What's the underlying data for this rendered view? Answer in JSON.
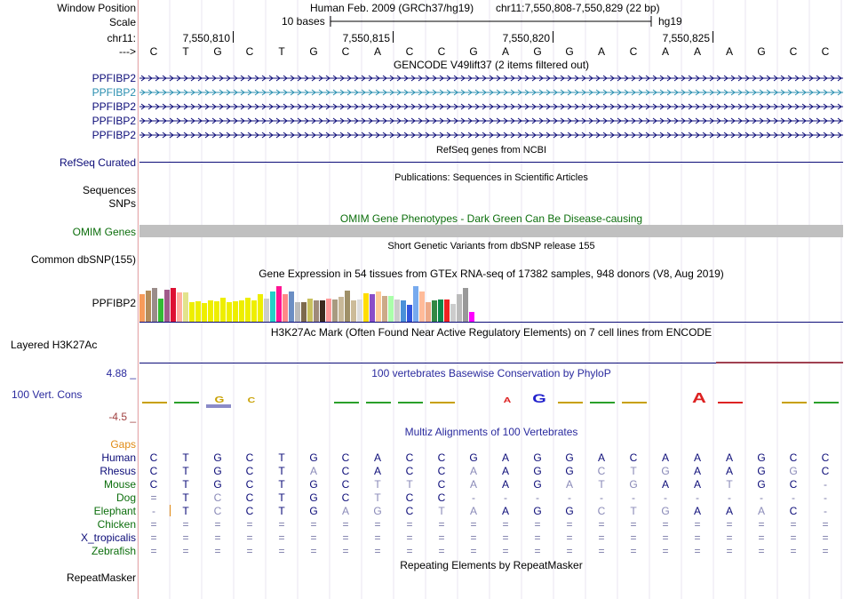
{
  "header": {
    "window_position_label": "Window Position",
    "scale_label": "Scale",
    "chrom_label": "chr11:",
    "strand_label": "--->",
    "assembly_title": "Human Feb. 2009 (GRCh37/hg19)",
    "position_text": "chr11:7,550,808-7,550,829 (22 bp)",
    "scale_text": "10 bases",
    "scale_db": "hg19",
    "ruler_ticks": [
      "7,550,810",
      "7,550,815",
      "7,550,820",
      "7,550,825"
    ]
  },
  "bases": [
    "C",
    "T",
    "G",
    "C",
    "T",
    "G",
    "C",
    "A",
    "C",
    "C",
    "G",
    "A",
    "G",
    "G",
    "A",
    "C",
    "A",
    "A",
    "A",
    "G",
    "C",
    "C"
  ],
  "gencode": {
    "title": "GENCODE V49lift37 (2 items filtered out)",
    "rows": [
      {
        "name": "PPFIBP2",
        "color": "#0c0c78"
      },
      {
        "name": "PPFIBP2",
        "color": "#2a8fb0"
      },
      {
        "name": "PPFIBP2",
        "color": "#0c0c78"
      },
      {
        "name": "PPFIBP2",
        "color": "#0c0c78"
      },
      {
        "name": "PPFIBP2",
        "color": "#0c0c78"
      }
    ]
  },
  "refseq": {
    "title": "RefSeq genes from NCBI",
    "label": "RefSeq Curated",
    "color": "#0c0c78"
  },
  "publications": {
    "title": "Publications: Sequences in Scientific Articles",
    "label1": "Sequences",
    "label2": "SNPs"
  },
  "omim": {
    "title": "OMIM Gene Phenotypes - Dark Green Can Be Disease-causing",
    "label": "OMIM Genes",
    "color": "#0c6e0c"
  },
  "dbsnp": {
    "title": "Short Genetic Variants from dbSNP release 155",
    "label": "Common dbSNP(155)"
  },
  "gtex": {
    "title": "Gene Expression in 54 tissues from GTEx RNA-seq of 17382 samples, 948 donors (V8, Aug 2019)",
    "label": "PPFIBP2",
    "bar_levels": [
      0.71,
      0.8,
      0.86,
      0.6,
      0.82,
      0.86,
      0.75,
      0.74,
      0.51,
      0.53,
      0.47,
      0.55,
      0.53,
      0.61,
      0.49,
      0.53,
      0.55,
      0.62,
      0.55,
      0.7,
      0.58,
      0.77,
      0.91,
      0.71,
      0.77,
      0.51,
      0.51,
      0.58,
      0.55,
      0.54,
      0.6,
      0.56,
      0.64,
      0.79,
      0.55,
      0.57,
      0.72,
      0.71,
      0.77,
      0.67,
      0.67,
      0.57,
      0.55,
      0.44,
      0.9,
      0.77,
      0.5,
      0.54,
      0.56,
      0.57,
      0.46,
      0.71,
      0.86,
      0.24
    ],
    "bar_colors": [
      "#f79b5a",
      "#b38c5a",
      "#9a8c8a",
      "#33bb33",
      "#a05a8a",
      "#dd1133",
      "#ffb0a0",
      "#e2e38c",
      "#eeee00",
      "#eeee00",
      "#eeee00",
      "#eeee00",
      "#eeee00",
      "#eeee00",
      "#eeee00",
      "#eeee00",
      "#eeee00",
      "#eeee00",
      "#eeee00",
      "#eeee00",
      "#cccccc",
      "#22d0c8",
      "#ff1493",
      "#ff8888",
      "#6b8ec4",
      "#bbbbbb",
      "#7d6a4d",
      "#c9c05e",
      "#9e8a7a",
      "#3d2b1f",
      "#ff9999",
      "#a89a80",
      "#c8b898",
      "#9f9068",
      "#ccbb99",
      "#dddddd",
      "#ffdd00",
      "#8a4ec8",
      "#ffcc99",
      "#ccaa88",
      "#aaffaa",
      "#cccccc",
      "#4a90d9",
      "#3355dd",
      "#77aaee",
      "#ffbb99",
      "#eeaa88",
      "#338844",
      "#0a8a4a",
      "#ee2222",
      "#cccccc",
      "#bbbbbb",
      "#999999",
      "#ff00ff"
    ]
  },
  "h3k27ac": {
    "title": "H3K27Ac Mark (Often Found Near Active Regulatory Elements) on 7 cell lines from ENCODE",
    "label": "Layered H3K27Ac"
  },
  "cons": {
    "title": "100 vertebrates Basewise Conservation by PhyloP",
    "label": "100 Vert. Cons",
    "ymax": "4.88 _",
    "ymin": "-4.5 _",
    "color": "#2a2a9e"
  },
  "multiz": {
    "title": "Multiz Alignments of 100 Vertebrates",
    "gaps_label": "Gaps",
    "species": [
      {
        "name": "Human",
        "color": "#0c0c78",
        "seq": [
          "C",
          "T",
          "G",
          "C",
          "T",
          "G",
          "C",
          "A",
          "C",
          "C",
          "G",
          "A",
          "G",
          "G",
          "A",
          "C",
          "A",
          "A",
          "A",
          "G",
          "C",
          "C"
        ]
      },
      {
        "name": "Rhesus",
        "color": "#0c0c78",
        "seq": [
          "C",
          "T",
          "G",
          "C",
          "T",
          "A",
          "C",
          "A",
          "C",
          "C",
          "A",
          "A",
          "G",
          "G",
          "C",
          "T",
          "G",
          "A",
          "A",
          "G",
          "G",
          "C"
        ]
      },
      {
        "name": "Mouse",
        "color": "#0c6e0c",
        "seq": [
          "C",
          "T",
          "G",
          "C",
          "T",
          "G",
          "C",
          "T",
          "T",
          "C",
          "A",
          "A",
          "G",
          "A",
          "T",
          "G",
          "A",
          "A",
          "T",
          "G",
          "C",
          "-"
        ]
      },
      {
        "name": "Dog",
        "color": "#0c6e0c",
        "seq": [
          "=",
          "T",
          "C",
          "C",
          "T",
          "G",
          "C",
          "T",
          "C",
          "C",
          "-",
          "-",
          "-",
          "-",
          "-",
          "-",
          "-",
          "-",
          "-",
          "-",
          "-",
          "-"
        ]
      },
      {
        "name": "Elephant",
        "color": "#0c6e0c",
        "seq": [
          "-",
          "T",
          "C",
          "C",
          "T",
          "G",
          "A",
          "G",
          "C",
          "T",
          "A",
          "A",
          "G",
          "G",
          "C",
          "T",
          "G",
          "A",
          "A",
          "A",
          "C",
          "-"
        ]
      },
      {
        "name": "Chicken",
        "color": "#0c6e0c",
        "seq": [
          "=",
          "=",
          "=",
          "=",
          "=",
          "=",
          "=",
          "=",
          "=",
          "=",
          "=",
          "=",
          "=",
          "=",
          "=",
          "=",
          "=",
          "=",
          "=",
          "=",
          "=",
          "="
        ]
      },
      {
        "name": "X_tropicalis",
        "color": "#0c0c78",
        "seq": [
          "=",
          "=",
          "=",
          "=",
          "=",
          "=",
          "=",
          "=",
          "=",
          "=",
          "=",
          "=",
          "=",
          "=",
          "=",
          "=",
          "=",
          "=",
          "=",
          "=",
          "=",
          "="
        ]
      },
      {
        "name": "Zebrafish",
        "color": "#0c6e0c",
        "seq": [
          "=",
          "=",
          "=",
          "=",
          "=",
          "=",
          "=",
          "=",
          "=",
          "=",
          "=",
          "=",
          "=",
          "=",
          "=",
          "=",
          "=",
          "=",
          "=",
          "=",
          "=",
          "="
        ]
      }
    ]
  },
  "repeatmasker": {
    "title": "Repeating Elements by RepeatMasker",
    "label": "RepeatMasker"
  }
}
